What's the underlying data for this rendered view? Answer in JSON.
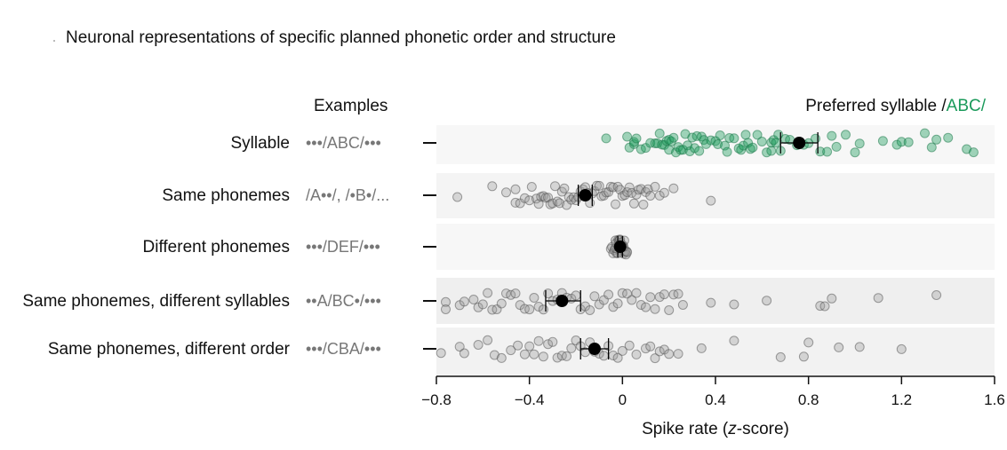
{
  "title": "Neuronal representations of specific planned phonetic order and structure",
  "chart_data": {
    "type": "scatter",
    "xlabel": "Spike rate (z-score)",
    "xlim": [
      -0.8,
      1.6
    ],
    "xticks": [
      -0.8,
      -0.4,
      0,
      0.4,
      0.8,
      1.2,
      1.6
    ],
    "xtick_labels": [
      "−0.8",
      "−0.4",
      "0",
      "0.4",
      "0.8",
      "1.2",
      "1.6"
    ],
    "examples_header": "Examples",
    "preferred_header": "Preferred syllable /",
    "preferred_highlight": "ABC/",
    "highlight_color": "#1a9a5a",
    "point_color": "#9a9a9a",
    "rows": [
      {
        "label": "Syllable",
        "example": "•••/ABC/•••",
        "color": "#1a9a5a",
        "mean": 0.76,
        "err_low": 0.68,
        "err_high": 0.84,
        "points": [
          0.02,
          0.03,
          0.05,
          0.05,
          0.06,
          0.08,
          0.1,
          0.12,
          0.14,
          0.15,
          0.16,
          0.17,
          0.18,
          0.19,
          0.2,
          0.2,
          0.21,
          0.22,
          0.23,
          0.24,
          0.25,
          0.26,
          0.27,
          0.28,
          0.29,
          0.3,
          0.31,
          0.32,
          0.33,
          0.34,
          0.35,
          0.36,
          0.38,
          0.4,
          0.41,
          0.42,
          0.44,
          0.45,
          0.46,
          0.48,
          0.5,
          0.51,
          0.52,
          0.53,
          0.54,
          0.55,
          0.56,
          0.58,
          0.6,
          0.62,
          0.64,
          0.64,
          0.65,
          0.66,
          0.67,
          0.68,
          0.7,
          0.72,
          0.75,
          0.78,
          0.8,
          0.83,
          0.85,
          0.88,
          0.9,
          0.92,
          0.96,
          1.0,
          1.02,
          1.12,
          1.18,
          1.2,
          1.23,
          1.3,
          1.33,
          1.35,
          1.4,
          1.48,
          1.51,
          -0.07
        ]
      },
      {
        "label": "Same phonemes",
        "example": "/A••/, /•B•/...",
        "color": "#9a9a9a",
        "mean": -0.16,
        "err_low": -0.19,
        "err_high": -0.13,
        "points": [
          -0.71,
          -0.56,
          -0.5,
          -0.46,
          -0.46,
          -0.44,
          -0.42,
          -0.4,
          -0.39,
          -0.37,
          -0.36,
          -0.35,
          -0.34,
          -0.33,
          -0.32,
          -0.31,
          -0.3,
          -0.29,
          -0.28,
          -0.27,
          -0.26,
          -0.25,
          -0.24,
          -0.23,
          -0.22,
          -0.21,
          -0.2,
          -0.19,
          -0.18,
          -0.17,
          -0.16,
          -0.15,
          -0.14,
          -0.13,
          -0.12,
          -0.11,
          -0.1,
          -0.09,
          -0.08,
          -0.07,
          -0.06,
          -0.05,
          -0.04,
          -0.03,
          -0.02,
          -0.01,
          0.0,
          0.01,
          0.02,
          0.03,
          0.04,
          0.05,
          0.06,
          0.07,
          0.08,
          0.09,
          0.1,
          0.11,
          0.12,
          0.14,
          0.16,
          0.18,
          0.22,
          0.38
        ]
      },
      {
        "label": "Different phonemes",
        "example": "•••/DEF/•••",
        "color": "#9a9a9a",
        "mean": -0.01,
        "err_low": -0.02,
        "err_high": 0.0,
        "points": [
          -0.05,
          -0.045,
          -0.04,
          -0.035,
          -0.03,
          -0.028,
          -0.025,
          -0.022,
          -0.02,
          -0.018,
          -0.015,
          -0.012,
          -0.01,
          -0.008,
          -0.005,
          -0.002,
          0.0,
          0.002,
          0.005,
          0.008,
          0.01,
          0.012,
          0.015,
          0.018,
          0.02,
          -0.03,
          -0.01,
          0.005
        ]
      },
      {
        "label": "Same phonemes, different syllables",
        "example": "••A/BC•/•••",
        "color": "#9a9a9a",
        "mean": -0.26,
        "err_low": -0.33,
        "err_high": -0.18,
        "points": [
          -0.76,
          -0.76,
          -0.7,
          -0.68,
          -0.64,
          -0.62,
          -0.6,
          -0.58,
          -0.56,
          -0.54,
          -0.52,
          -0.5,
          -0.48,
          -0.46,
          -0.44,
          -0.42,
          -0.4,
          -0.38,
          -0.36,
          -0.34,
          -0.32,
          -0.3,
          -0.28,
          -0.26,
          -0.24,
          -0.22,
          -0.2,
          -0.18,
          -0.16,
          -0.14,
          -0.12,
          -0.1,
          -0.08,
          -0.06,
          -0.04,
          -0.02,
          0.0,
          0.02,
          0.04,
          0.06,
          0.08,
          0.1,
          0.12,
          0.14,
          0.16,
          0.18,
          0.2,
          0.22,
          0.24,
          0.26,
          0.38,
          0.48,
          0.62,
          0.85,
          0.87,
          0.9,
          1.1,
          1.35
        ]
      },
      {
        "label": "Same phonemes, different order",
        "example": "•••/CBA/•••",
        "color": "#9a9a9a",
        "mean": -0.12,
        "err_low": -0.18,
        "err_high": -0.06,
        "points": [
          -0.78,
          -0.7,
          -0.68,
          -0.62,
          -0.58,
          -0.55,
          -0.52,
          -0.48,
          -0.45,
          -0.42,
          -0.4,
          -0.38,
          -0.36,
          -0.34,
          -0.32,
          -0.3,
          -0.28,
          -0.26,
          -0.24,
          -0.22,
          -0.2,
          -0.18,
          -0.16,
          -0.14,
          -0.12,
          -0.1,
          -0.08,
          -0.06,
          -0.04,
          -0.02,
          0.0,
          0.03,
          0.06,
          0.1,
          0.12,
          0.14,
          0.16,
          0.18,
          0.2,
          0.24,
          0.34,
          0.48,
          0.68,
          0.78,
          0.8,
          0.93,
          1.02,
          1.2
        ]
      }
    ]
  }
}
